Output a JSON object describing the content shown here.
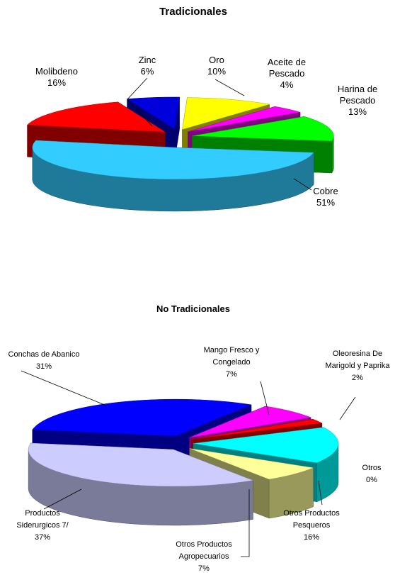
{
  "chart_data": [
    {
      "type": "pie",
      "title": "Tradicionales",
      "categories": [
        "Oro",
        "Aceite de Pescado",
        "Harina de Pescado",
        "Cobre",
        "Molibdeno",
        "Zinc"
      ],
      "values": [
        10,
        4,
        13,
        51,
        16,
        6
      ],
      "value_labels": [
        "10%",
        "4%",
        "13%",
        "51%",
        "16%",
        "6%"
      ],
      "colors": [
        "#ffff00",
        "#ff00ff",
        "#00ff00",
        "#33ccff",
        "#ff0000",
        "#0000dd"
      ]
    },
    {
      "type": "pie",
      "title": "No Tradicionales",
      "categories": [
        "Conchas de Abanico",
        "Mango Fresco y Congelado",
        "Oleoresina De Marigold y Paprika",
        "Otros",
        "Otros Productos Pesqueros",
        "Otros Productos Agropecuarios",
        "Productos Siderurgicos 7/"
      ],
      "values": [
        31,
        7,
        2,
        0,
        16,
        7,
        37
      ],
      "value_labels": [
        "31%",
        "7%",
        "2%",
        "0%",
        "16%",
        "7%",
        "37%"
      ],
      "colors": [
        "#0000ff",
        "#ff00ff",
        "#ff0000",
        "#00a000",
        "#00ffff",
        "#ffff99",
        "#ccccff"
      ]
    }
  ]
}
